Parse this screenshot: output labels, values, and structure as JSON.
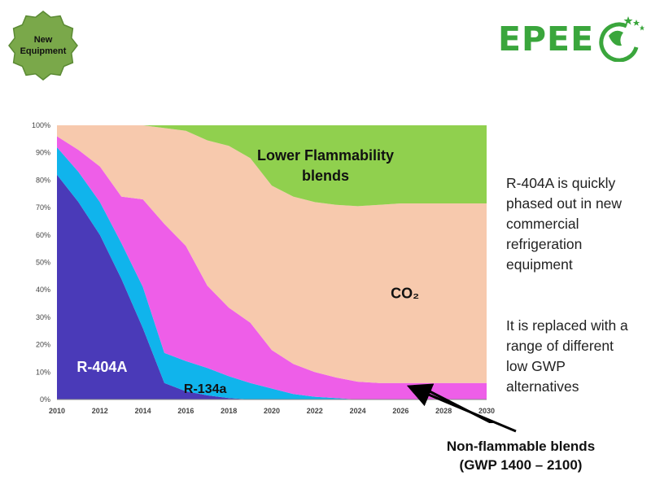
{
  "badge": {
    "label": "New\nEquipment",
    "color": "#7aa84a"
  },
  "logo": {
    "text": "EPEE",
    "icon": "globe-stars-icon",
    "color": "#3aa63c"
  },
  "chart_data": {
    "type": "area",
    "stacked": true,
    "x": [
      2010,
      2011,
      2012,
      2013,
      2014,
      2015,
      2016,
      2017,
      2018,
      2019,
      2020,
      2021,
      2022,
      2023,
      2024,
      2025,
      2026,
      2027,
      2028,
      2029,
      2030
    ],
    "xticks": [
      "2010",
      "2012",
      "2014",
      "2016",
      "2018",
      "2020",
      "2022",
      "2024",
      "2026",
      "2028",
      "2030"
    ],
    "yticks": [
      "0%",
      "10%",
      "20%",
      "30%",
      "40%",
      "50%",
      "60%",
      "70%",
      "80%",
      "90%",
      "100%"
    ],
    "ylim": [
      0,
      100
    ],
    "series": [
      {
        "name": "R-404A",
        "color": "#4a3ab8",
        "values": [
          82,
          72,
          60,
          44,
          26,
          6,
          3,
          1.5,
          0.5,
          0,
          0,
          0,
          0,
          0,
          0,
          0,
          0,
          0,
          0,
          0,
          0
        ]
      },
      {
        "name": "R-134a",
        "color": "#10b4ec",
        "values": [
          10,
          11,
          12,
          13,
          15,
          11,
          11,
          10,
          8,
          6,
          4,
          2,
          1,
          0.5,
          0,
          0,
          0,
          0,
          0,
          0,
          0
        ]
      },
      {
        "name": "Non-flammable blends",
        "color": "#ee5ee8",
        "values": [
          4,
          8,
          13,
          17,
          32,
          47,
          42,
          30,
          25,
          22,
          14,
          11,
          9,
          7.5,
          6.5,
          6,
          6,
          6,
          6,
          6,
          6
        ]
      },
      {
        "name": "CO2",
        "color": "#f7c9ad",
        "values": [
          4,
          9,
          15,
          26,
          27,
          35,
          42,
          53,
          59,
          60,
          60,
          61,
          62,
          63,
          64,
          65,
          65.5,
          65.5,
          65.5,
          65.5,
          65.5
        ]
      },
      {
        "name": "Lower Flammability blends",
        "color": "#90d04e",
        "values": [
          0,
          0,
          0,
          0,
          0,
          1,
          2,
          5.5,
          7.5,
          12,
          22,
          26,
          28,
          29,
          29.5,
          29,
          28.5,
          28.5,
          28.5,
          28.5,
          28.5
        ]
      }
    ],
    "labels": [
      {
        "text": "Lower Flammability\nblends",
        "series": "Lower Flammability blends"
      },
      {
        "text": "CO₂",
        "series": "CO2"
      },
      {
        "text": "R-404A",
        "series": "R-404A"
      },
      {
        "text": "R-134a",
        "series": "R-134a"
      }
    ]
  },
  "side_note": {
    "p1": "R-404A is quickly\nphased out in new\ncommercial\nrefrigeration\nequipment",
    "p2": "It is replaced with a\nrange of different\nlow GWP\nalternatives"
  },
  "callout": {
    "line1": "Non-flammable blends",
    "line2": "(GWP 1400 – 2100)"
  }
}
